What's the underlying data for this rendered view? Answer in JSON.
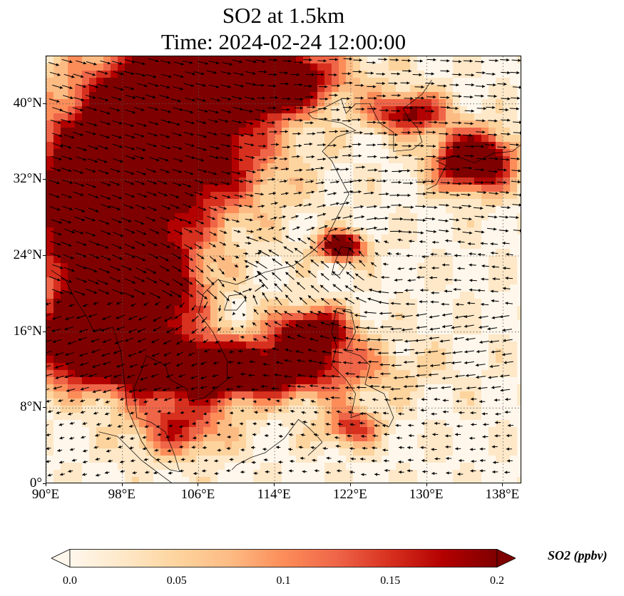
{
  "title": {
    "line1": "SO2 at 1.5km",
    "line2": "Time: 2024-02-24 12:00:00"
  },
  "map": {
    "extent": {
      "lon_min": 90,
      "lon_max": 140,
      "lat_min": 0,
      "lat_max": 45
    },
    "lat_ticks": [
      {
        "value": 0,
        "label": "0°"
      },
      {
        "value": 8,
        "label": "8°N"
      },
      {
        "value": 16,
        "label": "16°N"
      },
      {
        "value": 24,
        "label": "24°N"
      },
      {
        "value": 32,
        "label": "32°N"
      },
      {
        "value": 40,
        "label": "40°N"
      }
    ],
    "lon_ticks": [
      {
        "value": 90,
        "label": "90°E"
      },
      {
        "value": 98,
        "label": "98°E"
      },
      {
        "value": 106,
        "label": "106°E"
      },
      {
        "value": 114,
        "label": "114°E"
      },
      {
        "value": 122,
        "label": "122°E"
      },
      {
        "value": 130,
        "label": "130°E"
      },
      {
        "value": 138,
        "label": "138°E"
      }
    ],
    "field_layers": "SO2 concentration shaded; wind vectors as black arrows; coastlines thin black; dotted gridlines"
  },
  "colorbar": {
    "title": "SO2 (ppbv)",
    "min": 0.0,
    "max": 0.2,
    "extend": "both",
    "tick_labels": [
      "0.0",
      "0.05",
      "0.1",
      "0.15",
      "0.2"
    ],
    "tick_values": [
      0.0,
      0.05,
      0.1,
      0.15,
      0.2
    ],
    "colormap": "OrRd",
    "colors": [
      "#fff7ec",
      "#fee8c8",
      "#fdd49e",
      "#fdbb84",
      "#fc8d59",
      "#ef6548",
      "#d7301f",
      "#b30000",
      "#7f0000"
    ]
  }
}
